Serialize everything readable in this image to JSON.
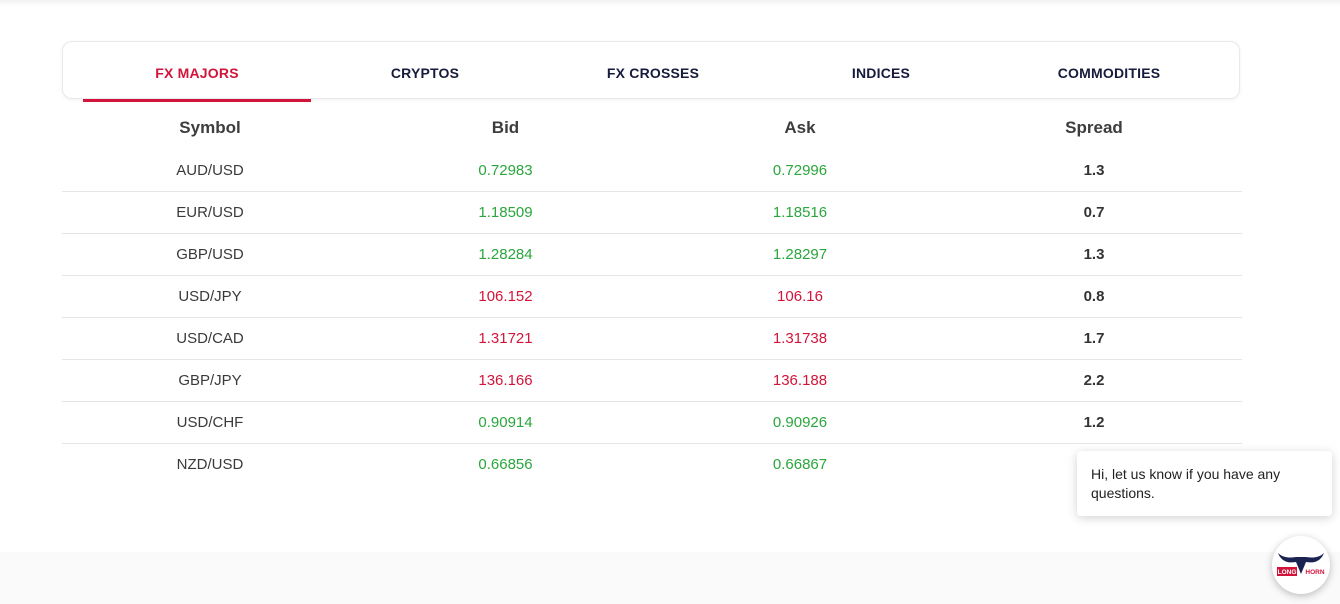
{
  "tabs": [
    {
      "label": "FX MAJORS",
      "active": true
    },
    {
      "label": "CRYPTOS",
      "active": false
    },
    {
      "label": "FX CROSSES",
      "active": false
    },
    {
      "label": "INDICES",
      "active": false
    },
    {
      "label": "COMMODITIES",
      "active": false
    }
  ],
  "table": {
    "headers": {
      "symbol": "Symbol",
      "bid": "Bid",
      "ask": "Ask",
      "spread": "Spread"
    },
    "rows": [
      {
        "symbol": "AUD/USD",
        "bid": "0.72983",
        "ask": "0.72996",
        "spread": "1.3",
        "trend": "up"
      },
      {
        "symbol": "EUR/USD",
        "bid": "1.18509",
        "ask": "1.18516",
        "spread": "0.7",
        "trend": "up"
      },
      {
        "symbol": "GBP/USD",
        "bid": "1.28284",
        "ask": "1.28297",
        "spread": "1.3",
        "trend": "up"
      },
      {
        "symbol": "USD/JPY",
        "bid": "106.152",
        "ask": "106.16",
        "spread": "0.8",
        "trend": "down"
      },
      {
        "symbol": "USD/CAD",
        "bid": "1.31721",
        "ask": "1.31738",
        "spread": "1.7",
        "trend": "down"
      },
      {
        "symbol": "GBP/JPY",
        "bid": "136.166",
        "ask": "136.188",
        "spread": "2.2",
        "trend": "down"
      },
      {
        "symbol": "USD/CHF",
        "bid": "0.90914",
        "ask": "0.90926",
        "spread": "1.2",
        "trend": "up"
      },
      {
        "symbol": "NZD/USD",
        "bid": "0.66856",
        "ask": "0.66867",
        "spread": "",
        "trend": "up"
      }
    ]
  },
  "chat": {
    "message": "Hi, let us know if you have any questions.",
    "avatar_icon": "longhorn-logo-icon",
    "avatar_text_left": "LONG",
    "avatar_text_right": "HORN"
  },
  "colors": {
    "accent": "#d3143a",
    "up": "#2aa63c",
    "down": "#d3143a",
    "tab_text": "#161a3c",
    "logo_navy": "#1b2450"
  }
}
